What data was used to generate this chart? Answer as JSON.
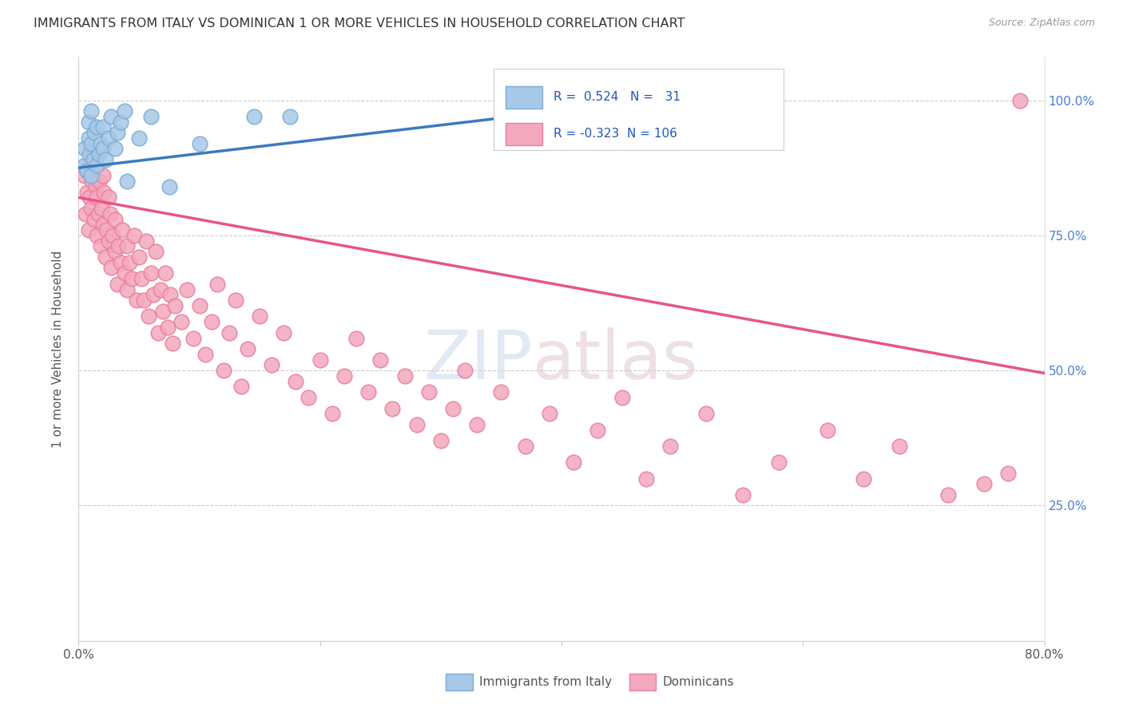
{
  "title": "IMMIGRANTS FROM ITALY VS DOMINICAN 1 OR MORE VEHICLES IN HOUSEHOLD CORRELATION CHART",
  "source": "Source: ZipAtlas.com",
  "ylabel": "1 or more Vehicles in Household",
  "italy_R": 0.524,
  "italy_N": 31,
  "dominican_R": -0.323,
  "dominican_N": 106,
  "italy_color": "#a8c8e8",
  "italy_edge_color": "#7aadd4",
  "dominican_color": "#f4a8c0",
  "dominican_edge_color": "#e8809a",
  "italy_line_color": "#3a7abf",
  "dominican_line_color": "#e8558a",
  "legend_label_italy": "Immigrants from Italy",
  "legend_label_dominican": "Dominicans",
  "watermark_zip": "ZIP",
  "watermark_atlas": "atlas",
  "xlim": [
    0.0,
    0.8
  ],
  "ylim": [
    0.0,
    1.08
  ],
  "italy_line_x0": 0.0,
  "italy_line_y0": 0.875,
  "italy_line_x1": 0.38,
  "italy_line_y1": 0.975,
  "dom_line_x0": 0.0,
  "dom_line_y0": 0.82,
  "dom_line_x1": 0.8,
  "dom_line_y1": 0.495,
  "italy_x": [
    0.005,
    0.005,
    0.007,
    0.008,
    0.008,
    0.009,
    0.01,
    0.01,
    0.01,
    0.012,
    0.013,
    0.015,
    0.015,
    0.017,
    0.018,
    0.02,
    0.02,
    0.022,
    0.025,
    0.027,
    0.03,
    0.032,
    0.035,
    0.038,
    0.04,
    0.05,
    0.06,
    0.075,
    0.1,
    0.145,
    0.175
  ],
  "italy_y": [
    0.88,
    0.91,
    0.87,
    0.93,
    0.96,
    0.9,
    0.86,
    0.92,
    0.98,
    0.89,
    0.94,
    0.88,
    0.95,
    0.9,
    0.92,
    0.91,
    0.95,
    0.89,
    0.93,
    0.97,
    0.91,
    0.94,
    0.96,
    0.98,
    0.85,
    0.93,
    0.97,
    0.84,
    0.92,
    0.97,
    0.97
  ],
  "dom_x": [
    0.005,
    0.006,
    0.007,
    0.008,
    0.008,
    0.009,
    0.01,
    0.01,
    0.011,
    0.012,
    0.013,
    0.014,
    0.015,
    0.015,
    0.016,
    0.017,
    0.018,
    0.019,
    0.02,
    0.02,
    0.021,
    0.022,
    0.023,
    0.025,
    0.025,
    0.026,
    0.027,
    0.028,
    0.03,
    0.03,
    0.032,
    0.033,
    0.035,
    0.036,
    0.038,
    0.04,
    0.04,
    0.042,
    0.044,
    0.046,
    0.048,
    0.05,
    0.052,
    0.054,
    0.056,
    0.058,
    0.06,
    0.062,
    0.064,
    0.066,
    0.068,
    0.07,
    0.072,
    0.074,
    0.076,
    0.078,
    0.08,
    0.085,
    0.09,
    0.095,
    0.1,
    0.105,
    0.11,
    0.115,
    0.12,
    0.125,
    0.13,
    0.135,
    0.14,
    0.15,
    0.16,
    0.17,
    0.18,
    0.19,
    0.2,
    0.21,
    0.22,
    0.23,
    0.24,
    0.25,
    0.26,
    0.27,
    0.28,
    0.29,
    0.3,
    0.31,
    0.32,
    0.33,
    0.35,
    0.37,
    0.39,
    0.41,
    0.43,
    0.45,
    0.47,
    0.49,
    0.52,
    0.55,
    0.58,
    0.62,
    0.65,
    0.68,
    0.72,
    0.75,
    0.77,
    0.78
  ],
  "dom_y": [
    0.86,
    0.79,
    0.83,
    0.88,
    0.76,
    0.82,
    0.87,
    0.8,
    0.85,
    0.9,
    0.78,
    0.84,
    0.75,
    0.82,
    0.79,
    0.85,
    0.73,
    0.8,
    0.86,
    0.77,
    0.83,
    0.71,
    0.76,
    0.82,
    0.74,
    0.79,
    0.69,
    0.75,
    0.72,
    0.78,
    0.66,
    0.73,
    0.7,
    0.76,
    0.68,
    0.65,
    0.73,
    0.7,
    0.67,
    0.75,
    0.63,
    0.71,
    0.67,
    0.63,
    0.74,
    0.6,
    0.68,
    0.64,
    0.72,
    0.57,
    0.65,
    0.61,
    0.68,
    0.58,
    0.64,
    0.55,
    0.62,
    0.59,
    0.65,
    0.56,
    0.62,
    0.53,
    0.59,
    0.66,
    0.5,
    0.57,
    0.63,
    0.47,
    0.54,
    0.6,
    0.51,
    0.57,
    0.48,
    0.45,
    0.52,
    0.42,
    0.49,
    0.56,
    0.46,
    0.52,
    0.43,
    0.49,
    0.4,
    0.46,
    0.37,
    0.43,
    0.5,
    0.4,
    0.46,
    0.36,
    0.42,
    0.33,
    0.39,
    0.45,
    0.3,
    0.36,
    0.42,
    0.27,
    0.33,
    0.39,
    0.3,
    0.36,
    0.27,
    0.29,
    0.31,
    1.0
  ]
}
